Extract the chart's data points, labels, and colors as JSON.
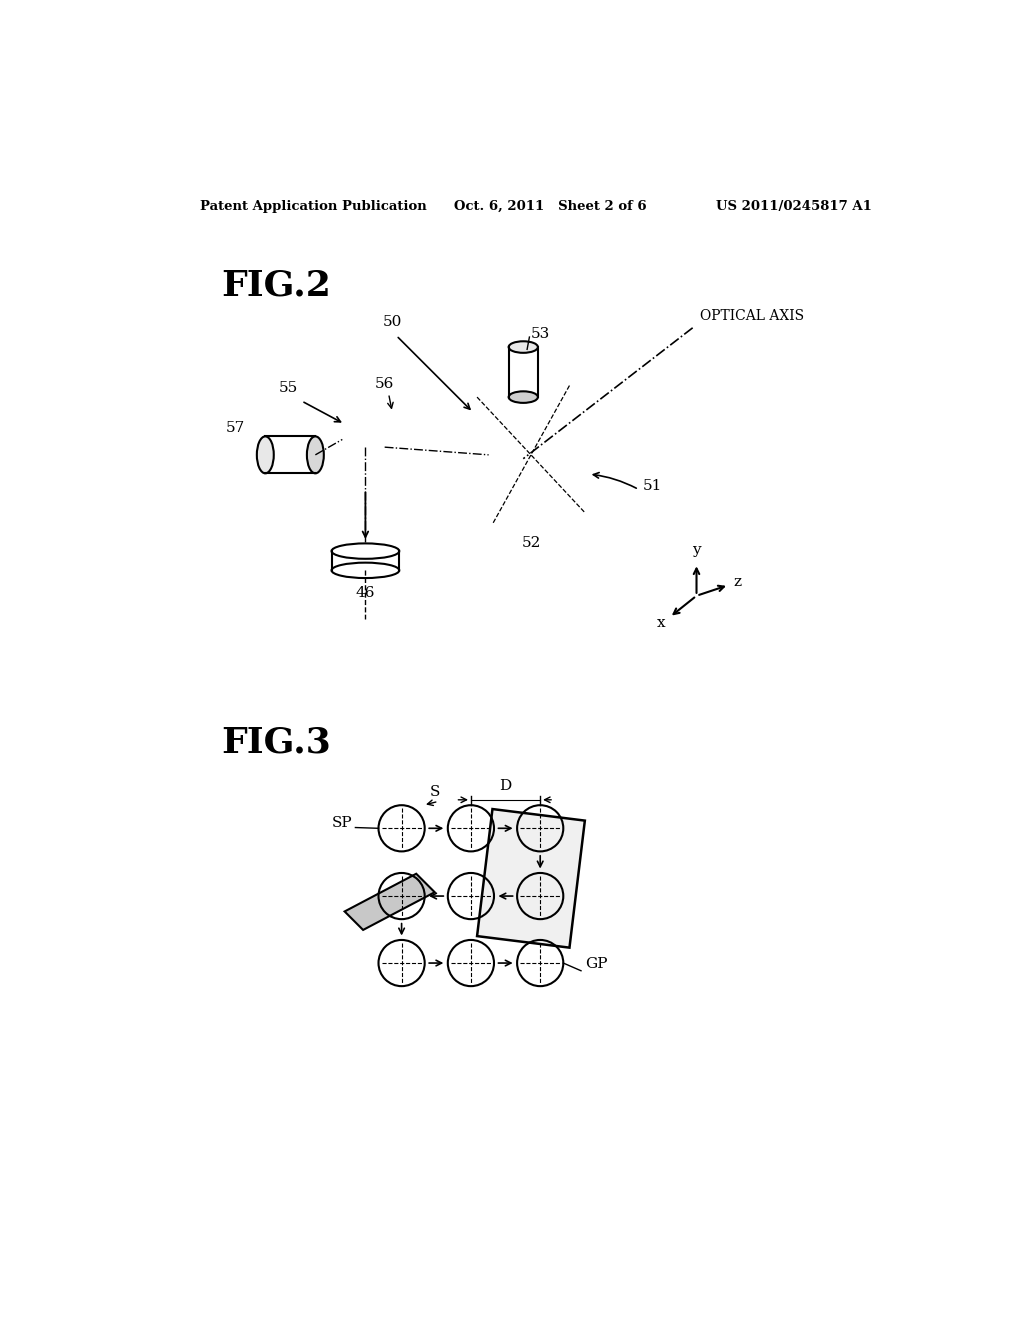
{
  "bg_color": "#ffffff",
  "header_left": "Patent Application Publication",
  "header_mid": "Oct. 6, 2011   Sheet 2 of 6",
  "header_right": "US 2011/0245817 A1",
  "fig2_label": "FIG.2",
  "fig3_label": "FIG.3",
  "optical_axis_label": "OPTICAL AXIS"
}
